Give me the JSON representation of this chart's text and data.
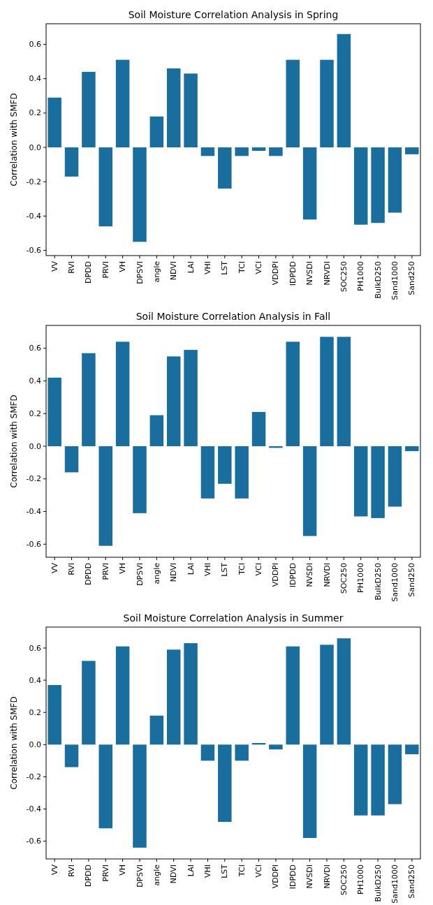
{
  "chart_data": [
    {
      "type": "bar",
      "title": "Soil Moisture Correlation Analysis in Spring",
      "ylabel": "Correlation with SMFD",
      "categories": [
        "VV",
        "RVI",
        "DPDD",
        "PRVI",
        "VH",
        "DPSVI",
        "angle",
        "NDVI",
        "LAI",
        "VHI",
        "LST",
        "TCI",
        "VCI",
        "VDDPI",
        "IDPDD",
        "NVSDI",
        "NRVDI",
        "SOC250",
        "PH1000",
        "BulkD250",
        "Sand1000",
        "Sand250"
      ],
      "values": [
        0.29,
        -0.17,
        0.44,
        -0.46,
        0.51,
        -0.55,
        0.18,
        0.46,
        0.43,
        -0.05,
        -0.24,
        -0.05,
        -0.02,
        -0.05,
        0.51,
        -0.42,
        0.51,
        0.66,
        -0.45,
        -0.44,
        -0.38,
        -0.04
      ],
      "color": "#1a6e9e",
      "ylim": [
        -0.63,
        0.72
      ],
      "yticks": [
        {
          "value": -0.6,
          "label": "-0.6"
        },
        {
          "value": -0.4,
          "label": "-0.4"
        },
        {
          "value": -0.2,
          "label": "-0.2"
        },
        {
          "value": 0,
          "label": "0.0"
        },
        {
          "value": 0.2,
          "label": "0.2"
        },
        {
          "value": 0.4,
          "label": "0.4"
        },
        {
          "value": 0.6,
          "label": "0.6"
        }
      ]
    },
    {
      "type": "bar",
      "title": "Soil Moisture Correlation Analysis in Fall",
      "ylabel": "Correlation with SMFD",
      "categories": [
        "VV",
        "RVI",
        "DPDD",
        "PRVI",
        "VH",
        "DPSVI",
        "angle",
        "NDVI",
        "LAI",
        "VHI",
        "LST",
        "TCI",
        "VCI",
        "VDDPI",
        "IDPDD",
        "NVSDI",
        "NRVDI",
        "SOC250",
        "PH1000",
        "BulkD250",
        "Sand1000",
        "Sand250"
      ],
      "values": [
        0.42,
        -0.16,
        0.57,
        -0.61,
        0.64,
        -0.41,
        0.19,
        0.55,
        0.59,
        -0.32,
        -0.23,
        -0.32,
        0.21,
        -0.01,
        0.64,
        -0.55,
        0.67,
        0.67,
        -0.43,
        -0.44,
        -0.37,
        -0.03
      ],
      "color": "#1a6e9e",
      "ylim": [
        -0.68,
        0.74
      ],
      "yticks": [
        {
          "value": -0.6,
          "label": "-0.6"
        },
        {
          "value": -0.4,
          "label": "-0.4"
        },
        {
          "value": -0.2,
          "label": "-0.2"
        },
        {
          "value": 0,
          "label": "0.0"
        },
        {
          "value": 0.2,
          "label": "0.2"
        },
        {
          "value": 0.4,
          "label": "0.4"
        },
        {
          "value": 0.6,
          "label": "0.6"
        }
      ]
    },
    {
      "type": "bar",
      "title": "Soil Moisture Correlation Analysis in Summer",
      "ylabel": "Correlation with SMFD",
      "categories": [
        "VV",
        "RVI",
        "DPDD",
        "PRVI",
        "VH",
        "DPSVI",
        "angle",
        "NDVI",
        "LAI",
        "VHI",
        "LST",
        "TCI",
        "VCI",
        "VDDPI",
        "IDPDD",
        "NVSDI",
        "NRVDI",
        "SOC250",
        "PH1000",
        "BulkD250",
        "Sand1000",
        "Sand250"
      ],
      "values": [
        0.37,
        -0.14,
        0.52,
        -0.52,
        0.61,
        -0.64,
        0.18,
        0.59,
        0.63,
        -0.1,
        -0.48,
        -0.1,
        0.01,
        -0.03,
        0.61,
        -0.58,
        0.62,
        0.66,
        -0.44,
        -0.44,
        -0.37,
        -0.06
      ],
      "color": "#1a6e9e",
      "ylim": [
        -0.71,
        0.73
      ],
      "yticks": [
        {
          "value": -0.6,
          "label": "-0.6"
        },
        {
          "value": -0.4,
          "label": "-0.4"
        },
        {
          "value": -0.2,
          "label": "-0.2"
        },
        {
          "value": 0,
          "label": "0.0"
        },
        {
          "value": 0.2,
          "label": "0.2"
        },
        {
          "value": 0.4,
          "label": "0.4"
        },
        {
          "value": 0.6,
          "label": "0.6"
        }
      ]
    }
  ]
}
